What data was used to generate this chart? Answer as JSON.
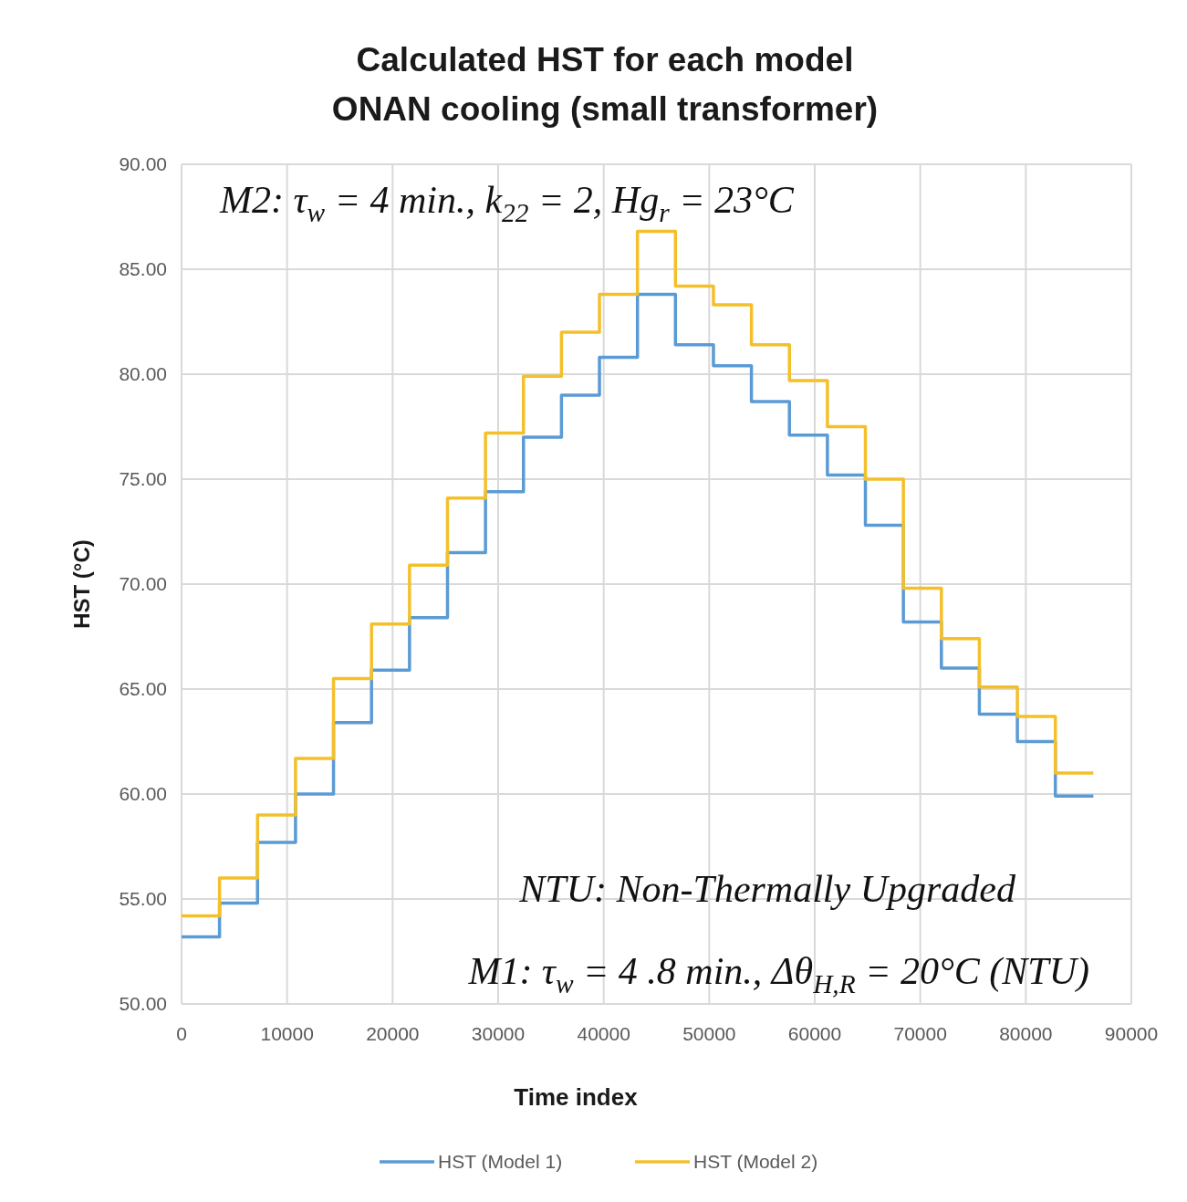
{
  "chart_data": {
    "type": "step",
    "title": "Calculated HST for each model\nONAN cooling (small transformer)",
    "xlabel": "Time index",
    "ylabel": "HST (°C)",
    "x": [
      0,
      3600,
      7200,
      10800,
      14400,
      18000,
      21600,
      25200,
      28800,
      32400,
      36000,
      39600,
      43200,
      46800,
      50400,
      54000,
      57600,
      61200,
      64800,
      68400,
      72000,
      75600,
      79200,
      82800,
      86400
    ],
    "series": [
      {
        "name": "HST (Model 1)",
        "color": "#5b9bd5",
        "values": [
          53.2,
          54.8,
          57.7,
          60.0,
          63.4,
          65.9,
          68.4,
          71.5,
          74.4,
          77.0,
          79.0,
          80.8,
          83.8,
          81.4,
          80.4,
          78.7,
          77.1,
          75.2,
          72.8,
          68.2,
          66.0,
          63.8,
          62.5,
          59.9,
          59.9
        ]
      },
      {
        "name": "HST (Model 2)",
        "color": "#f4c02a",
        "values": [
          54.2,
          56.0,
          59.0,
          61.7,
          65.5,
          68.1,
          70.9,
          74.1,
          77.2,
          79.9,
          82.0,
          83.8,
          86.8,
          84.2,
          83.3,
          81.4,
          79.7,
          77.5,
          75.0,
          69.8,
          67.4,
          65.1,
          63.7,
          61.0,
          61.0
        ]
      }
    ],
    "xlim": [
      0,
      90000
    ],
    "xticks": [
      0,
      10000,
      20000,
      30000,
      40000,
      50000,
      60000,
      70000,
      80000,
      90000
    ],
    "ylim": [
      50,
      90
    ],
    "yticks": [
      {
        "value": 50,
        "label": "50.00"
      },
      {
        "value": 55,
        "label": "55.00"
      },
      {
        "value": 60,
        "label": "60.00"
      },
      {
        "value": 65,
        "label": "65.00"
      },
      {
        "value": 70,
        "label": "70.00"
      },
      {
        "value": 75,
        "label": "75.00"
      },
      {
        "value": 80,
        "label": "80.00"
      },
      {
        "value": 85,
        "label": "85.00"
      },
      {
        "value": 90,
        "label": "90.00"
      }
    ],
    "grid": true,
    "legend": "bottom",
    "line_style": "solid",
    "marker": "none",
    "annotations": [
      "M2: τ$_{w}$ = 4 min., k$_{22}$ = 2, Hg$_{r}$ = 23°C",
      "NTU: Non-Thermally Upgraded",
      "M1: τ$_{w}$ = 4 .8 min., Δθ$_{H,R}$ = 20°C (NTU)"
    ]
  }
}
